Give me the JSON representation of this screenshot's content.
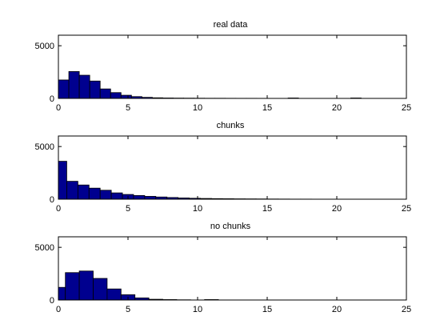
{
  "chart_data": [
    {
      "type": "bar",
      "title": "real data",
      "xlim": [
        0,
        25
      ],
      "ylim": [
        0,
        6000
      ],
      "xticks": [
        0,
        5,
        10,
        15,
        20,
        25
      ],
      "yticks": [
        0,
        5000
      ],
      "bin_edges": [
        0,
        0.75,
        1.5,
        2.25,
        3.0,
        3.75,
        4.5,
        5.25,
        6.0,
        6.75,
        7.5,
        8.25,
        9.0,
        9.75,
        10.5,
        11.25,
        12.0,
        12.75,
        13.5,
        14.25,
        15.0,
        15.75,
        16.5,
        17.25,
        18.0,
        18.75,
        19.5,
        20.25,
        21.0,
        21.75,
        22.5
      ],
      "values": [
        1750,
        2550,
        2200,
        1650,
        900,
        550,
        300,
        170,
        100,
        60,
        40,
        30,
        25,
        20,
        15,
        15,
        12,
        10,
        10,
        8,
        5,
        5,
        40,
        5,
        5,
        3,
        3,
        3,
        40,
        3
      ],
      "bar_color": "#00008f",
      "edge_color": "#000000"
    },
    {
      "type": "bar",
      "title": "chunks",
      "xlim": [
        0,
        25
      ],
      "ylim": [
        0,
        6000
      ],
      "xticks": [
        0,
        5,
        10,
        15,
        20,
        25
      ],
      "yticks": [
        0,
        5000
      ],
      "bin_edges": [
        0,
        0.6,
        1.4,
        2.2,
        3.0,
        3.8,
        4.6,
        5.4,
        6.2,
        7.0,
        7.8,
        8.6,
        9.4,
        10.2,
        11.0,
        11.8,
        12.6,
        13.4,
        14.2,
        15.0,
        15.8,
        16.6,
        17.4,
        18.2
      ],
      "values": [
        3600,
        1700,
        1350,
        1050,
        850,
        600,
        450,
        350,
        270,
        210,
        160,
        120,
        90,
        70,
        55,
        45,
        35,
        30,
        25,
        20,
        15,
        10,
        10
      ],
      "bar_color": "#00008f",
      "edge_color": "#000000"
    },
    {
      "type": "bar",
      "title": "no chunks",
      "xlim": [
        0,
        25
      ],
      "ylim": [
        0,
        6000
      ],
      "xticks": [
        0,
        5,
        10,
        15,
        20,
        25
      ],
      "yticks": [
        0,
        5000
      ],
      "bin_edges": [
        0,
        0.5,
        1.5,
        2.5,
        3.5,
        4.5,
        5.5,
        6.5,
        7.5,
        8.5,
        9.5,
        10.5,
        11.5
      ],
      "values": [
        1200,
        2600,
        2750,
        2050,
        1050,
        500,
        200,
        70,
        40,
        20,
        5,
        40
      ],
      "bar_color": "#00008f",
      "edge_color": "#000000"
    }
  ]
}
